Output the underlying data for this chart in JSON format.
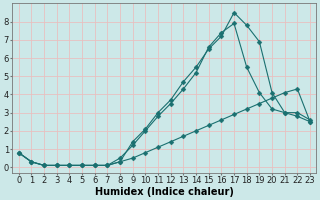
{
  "background_color": "#cce8e8",
  "grid_color": "#e8c0c0",
  "line_color": "#1a7070",
  "xlabel": "Humidex (Indice chaleur)",
  "xlabel_fontsize": 7,
  "tick_fontsize": 6,
  "xlim": [
    -0.5,
    23.5
  ],
  "ylim": [
    -0.3,
    9.0
  ],
  "xticks": [
    0,
    1,
    2,
    3,
    4,
    5,
    6,
    7,
    8,
    9,
    10,
    11,
    12,
    13,
    14,
    15,
    16,
    17,
    18,
    19,
    20,
    21,
    22,
    23
  ],
  "yticks": [
    0,
    1,
    2,
    3,
    4,
    5,
    6,
    7,
    8
  ],
  "line1_x": [
    0,
    1,
    2,
    3,
    4,
    5,
    6,
    7,
    8,
    9,
    10,
    11,
    12,
    13,
    14,
    15,
    16,
    17,
    18,
    19,
    20,
    21,
    22,
    23
  ],
  "line1_y": [
    0.8,
    0.3,
    0.1,
    0.1,
    0.1,
    0.1,
    0.1,
    0.1,
    0.3,
    1.4,
    2.1,
    3.0,
    3.7,
    4.7,
    5.5,
    6.5,
    7.2,
    8.5,
    7.8,
    6.9,
    4.1,
    3.0,
    3.0,
    2.6
  ],
  "line2_x": [
    0,
    1,
    2,
    3,
    4,
    5,
    6,
    7,
    8,
    9,
    10,
    11,
    12,
    13,
    14,
    15,
    16,
    17,
    18,
    19,
    20,
    21,
    22,
    23
  ],
  "line2_y": [
    0.8,
    0.3,
    0.1,
    0.1,
    0.1,
    0.1,
    0.1,
    0.1,
    0.5,
    1.2,
    2.0,
    2.8,
    3.5,
    4.3,
    5.2,
    6.6,
    7.4,
    7.9,
    5.5,
    4.1,
    3.2,
    3.0,
    2.8,
    2.5
  ],
  "line3_x": [
    0,
    1,
    2,
    3,
    4,
    5,
    6,
    7,
    8,
    9,
    10,
    11,
    12,
    13,
    14,
    15,
    16,
    17,
    18,
    19,
    20,
    21,
    22,
    23
  ],
  "line3_y": [
    0.8,
    0.3,
    0.1,
    0.1,
    0.1,
    0.1,
    0.1,
    0.1,
    0.3,
    0.5,
    0.8,
    1.1,
    1.4,
    1.7,
    2.0,
    2.3,
    2.6,
    2.9,
    3.2,
    3.5,
    3.8,
    4.1,
    4.3,
    2.5
  ]
}
